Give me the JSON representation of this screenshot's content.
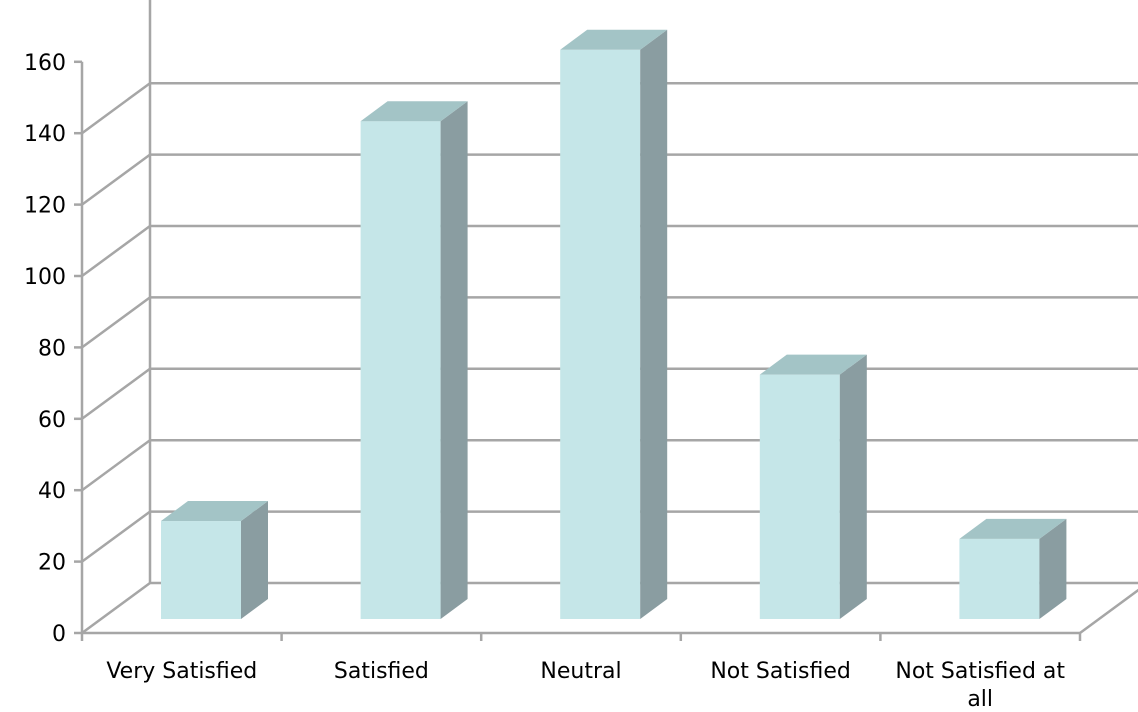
{
  "chart_data": {
    "type": "bar",
    "style": "3d-column",
    "categories": [
      "Very Satisfied",
      "Satisfied",
      "Neutral",
      "Not Satisfied",
      "Not Satisfied at all"
    ],
    "values": [
      28,
      140,
      160,
      69,
      23
    ],
    "ylim": [
      0,
      160
    ],
    "yticks": [
      0,
      20,
      40,
      60,
      80,
      100,
      120,
      140,
      160
    ],
    "grid": true,
    "legend": "none",
    "colors": {
      "bar_front": "#c5e6e8",
      "bar_side": "#8a9da1",
      "bar_top": "#a3c4c6",
      "grid": "#a6a6a6"
    }
  }
}
